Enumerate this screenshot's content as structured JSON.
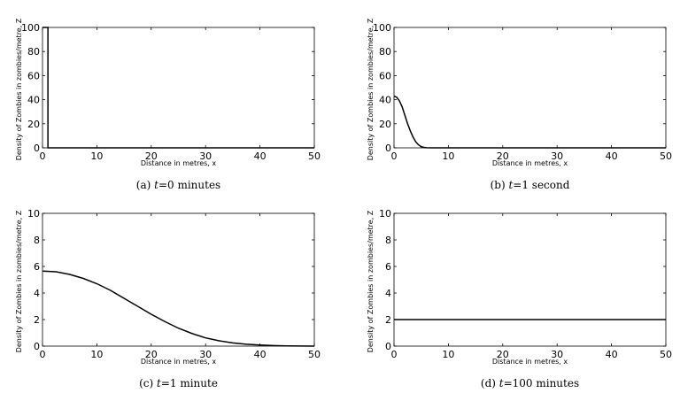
{
  "chart_data": [
    {
      "type": "line",
      "caption_letter": "(a)",
      "caption_var": "t",
      "caption_rest": "=0 minutes",
      "xlabel": "Distance in metres, x",
      "ylabel": "Density of Zombies in zombies/metre, Z",
      "xlim": [
        0,
        50
      ],
      "ylim": [
        0,
        100
      ],
      "xticks": [
        0,
        10,
        20,
        30,
        40,
        50
      ],
      "yticks": [
        0,
        20,
        40,
        60,
        80,
        100
      ],
      "grid": false,
      "series": [
        {
          "x": [
            0,
            1,
            1,
            50
          ],
          "y": [
            100,
            100,
            0,
            0
          ]
        }
      ]
    },
    {
      "type": "line",
      "caption_letter": "(b)",
      "caption_var": "t",
      "caption_rest": "=1 second",
      "xlabel": "Distance in metres, x",
      "ylabel": "Density of Zombies in zombies/metre, Z",
      "xlim": [
        0,
        50
      ],
      "ylim": [
        0,
        100
      ],
      "xticks": [
        0,
        10,
        20,
        30,
        40,
        50
      ],
      "yticks": [
        0,
        20,
        40,
        60,
        80,
        100
      ],
      "grid": false,
      "series": [
        {
          "x": [
            0,
            0.5,
            1,
            1.5,
            2,
            2.5,
            3,
            3.5,
            4,
            4.5,
            5,
            5.5,
            6,
            7,
            8,
            10,
            20,
            30,
            40,
            50
          ],
          "y": [
            43,
            42,
            39,
            34,
            27,
            20,
            14,
            9,
            5,
            2.5,
            1,
            0.4,
            0.1,
            0,
            0,
            0,
            0,
            0,
            0,
            0
          ]
        }
      ]
    },
    {
      "type": "line",
      "caption_letter": "(c)",
      "caption_var": "t",
      "caption_rest": "=1 minute",
      "xlabel": "Distance in metres, x",
      "ylabel": "Density of Zombies in zombies/metre, Z",
      "xlim": [
        0,
        50
      ],
      "ylim": [
        0,
        10
      ],
      "xticks": [
        0,
        10,
        20,
        30,
        40,
        50
      ],
      "yticks": [
        0,
        2,
        4,
        6,
        8,
        10
      ],
      "grid": false,
      "series": [
        {
          "x": [
            0,
            2.5,
            5,
            7.5,
            10,
            12.5,
            15,
            17.5,
            20,
            22.5,
            25,
            27.5,
            30,
            32.5,
            35,
            37.5,
            40,
            42.5,
            45,
            47.5,
            50
          ],
          "y": [
            5.65,
            5.6,
            5.4,
            5.1,
            4.7,
            4.2,
            3.6,
            3.0,
            2.4,
            1.85,
            1.35,
            0.95,
            0.62,
            0.4,
            0.24,
            0.14,
            0.08,
            0.04,
            0.02,
            0.01,
            0.0
          ]
        }
      ]
    },
    {
      "type": "line",
      "caption_letter": "(d)",
      "caption_var": "t",
      "caption_rest": "=100 minutes",
      "xlabel": "Distance in metres, x",
      "ylabel": "Density of Zombies in zombies/metre, Z",
      "xlim": [
        0,
        50
      ],
      "ylim": [
        0,
        10
      ],
      "xticks": [
        0,
        10,
        20,
        30,
        40,
        50
      ],
      "yticks": [
        0,
        2,
        4,
        6,
        8,
        10
      ],
      "grid": false,
      "series": [
        {
          "x": [
            0,
            50
          ],
          "y": [
            2,
            2
          ]
        }
      ]
    }
  ]
}
